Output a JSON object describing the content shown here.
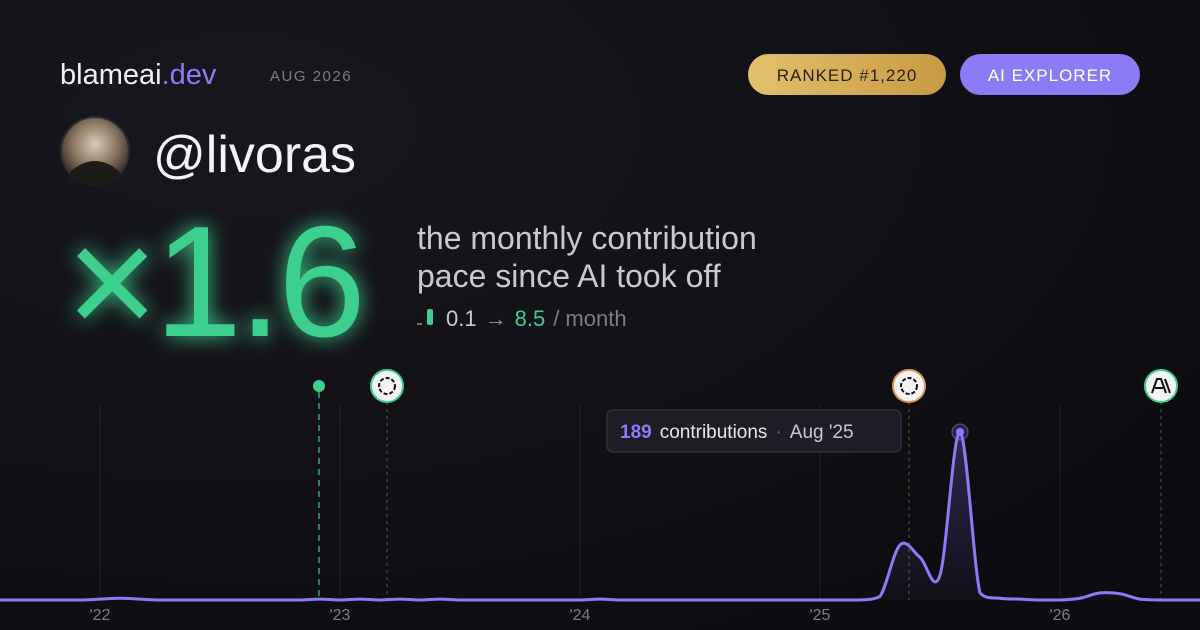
{
  "header": {
    "brand": "blameai",
    "brand_tld": ".dev",
    "date": "AUG 2026",
    "badges": [
      "RANKED #1,220",
      "AI EXPLORER"
    ]
  },
  "profile": {
    "handle": "@livoras"
  },
  "headline": {
    "multiplier": "×1.6",
    "caption_lines": [
      "the monthly contribution",
      "pace since AI took off"
    ],
    "from": 0.1,
    "arrow": "→",
    "to": 8.5,
    "unit": "/ month"
  },
  "tooltip": {
    "label": "contributions",
    "separator": "·",
    "date": "Aug '25"
  },
  "chart_data": {
    "type": "area",
    "color": "#8b7cf6",
    "categories": [
      null,
      null,
      null,
      null,
      null,
      "'22",
      null,
      null,
      null,
      null,
      null,
      null,
      null,
      null,
      null,
      null,
      null,
      "'23",
      null,
      null,
      null,
      null,
      null,
      null,
      null,
      null,
      null,
      null,
      null,
      "'24",
      null,
      null,
      null,
      null,
      null,
      null,
      null,
      null,
      null,
      null,
      null,
      "'25",
      null,
      null,
      null,
      null,
      null,
      null,
      null,
      null,
      null,
      null,
      null,
      "'26",
      null,
      null,
      null,
      null,
      null,
      null,
      null
    ],
    "values": [
      0,
      0,
      0,
      0,
      0,
      1,
      2,
      1,
      0,
      0,
      0,
      0,
      0,
      0,
      0,
      0,
      1,
      0,
      1,
      0,
      1,
      0,
      1,
      0,
      0,
      0,
      0,
      0,
      0,
      0,
      1,
      0,
      0,
      0,
      0,
      0,
      0,
      0,
      0,
      0,
      0,
      0,
      0,
      0,
      4,
      62,
      48,
      28,
      189,
      8,
      2,
      1,
      0,
      0,
      2,
      8,
      7,
      1,
      0,
      0,
      0
    ]
  }
}
